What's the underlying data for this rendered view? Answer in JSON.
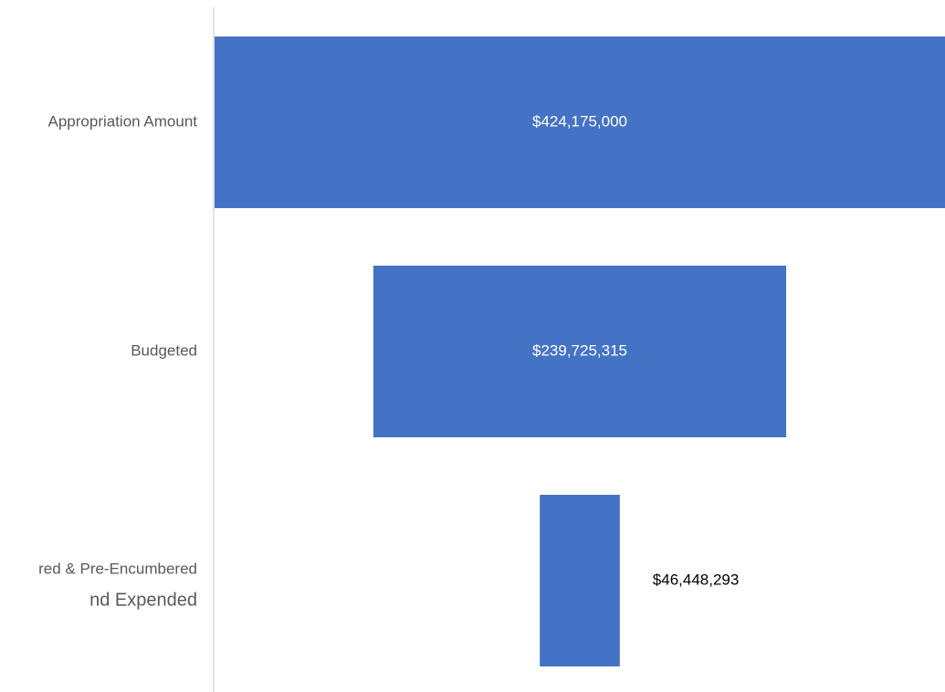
{
  "chart_data": {
    "type": "funnel",
    "categories": [
      "Appropriation Amount",
      "Budgeted",
      [
        "red & Pre-Encumbered",
        "nd Expended"
      ]
    ],
    "values": [
      424175000,
      239725315,
      46448293
    ],
    "value_labels": [
      "$424,175,000",
      "$239,725,315",
      "$46,448,293"
    ],
    "color": "#4472c4"
  }
}
